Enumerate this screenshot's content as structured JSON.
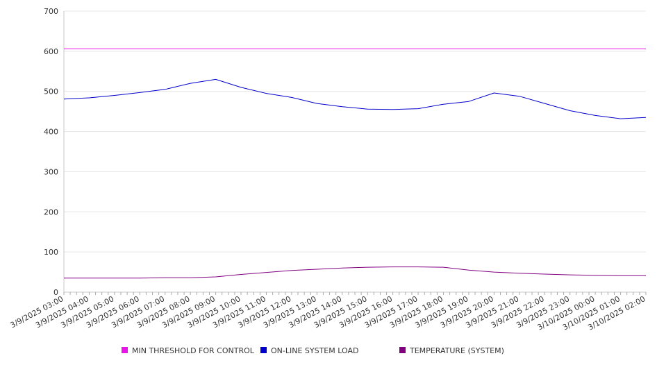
{
  "chart_data": {
    "type": "line",
    "title": "",
    "xlabel": "",
    "ylabel": "",
    "ylim": [
      0,
      700
    ],
    "yticks": [
      0,
      100,
      200,
      300,
      400,
      500,
      600,
      700
    ],
    "grid": true,
    "legend_position": "bottom",
    "xticks": [
      "3/9/2025 03:00",
      "3/9/2025 04:00",
      "3/9/2025 05:00",
      "3/9/2025 06:00",
      "3/9/2025 07:00",
      "3/9/2025 08:00",
      "3/9/2025 09:00",
      "3/9/2025 10:00",
      "3/9/2025 11:00",
      "3/9/2025 12:00",
      "3/9/2025 13:00",
      "3/9/2025 14:00",
      "3/9/2025 15:00",
      "3/9/2025 16:00",
      "3/9/2025 17:00",
      "3/9/2025 18:00",
      "3/9/2025 19:00",
      "3/9/2025 20:00",
      "3/9/2025 21:00",
      "3/9/2025 22:00",
      "3/9/2025 23:00",
      "3/10/2025 00:00",
      "3/10/2025 01:00",
      "3/10/2025 02:00"
    ],
    "x": [
      "3/9/2025 03:00",
      "3/9/2025 04:00",
      "3/9/2025 05:00",
      "3/9/2025 06:00",
      "3/9/2025 07:00",
      "3/9/2025 08:00",
      "3/9/2025 09:00",
      "3/9/2025 10:00",
      "3/9/2025 11:00",
      "3/9/2025 12:00",
      "3/9/2025 13:00",
      "3/9/2025 14:00",
      "3/9/2025 15:00",
      "3/9/2025 16:00",
      "3/9/2025 17:00",
      "3/9/2025 18:00",
      "3/9/2025 19:00",
      "3/9/2025 20:00",
      "3/9/2025 21:00",
      "3/9/2025 22:00",
      "3/9/2025 23:00",
      "3/10/2025 00:00",
      "3/10/2025 01:00",
      "3/10/2025 02:00"
    ],
    "series": [
      {
        "name": "MIN THRESHOLD FOR CONTROL",
        "color": "#e815e8",
        "values": [
          606,
          606,
          606,
          606,
          606,
          606,
          606,
          606,
          606,
          606,
          606,
          606,
          606,
          606,
          606,
          606,
          606,
          606,
          606,
          606,
          606,
          606,
          606,
          606
        ]
      },
      {
        "name": "ON-LINE SYSTEM LOAD",
        "color": "#0000cc",
        "values": [
          481,
          484,
          490,
          497,
          505,
          520,
          530,
          510,
          495,
          485,
          470,
          462,
          456,
          455,
          457,
          468,
          475,
          496,
          488,
          470,
          452,
          440,
          432,
          435
        ]
      },
      {
        "name": "TEMPERATURE (SYSTEM)",
        "color": "#800080",
        "values": [
          35,
          35,
          35,
          35,
          36,
          36,
          38,
          44,
          49,
          54,
          57,
          60,
          62,
          63,
          63,
          62,
          55,
          50,
          47,
          45,
          43,
          42,
          41,
          41
        ]
      }
    ]
  }
}
